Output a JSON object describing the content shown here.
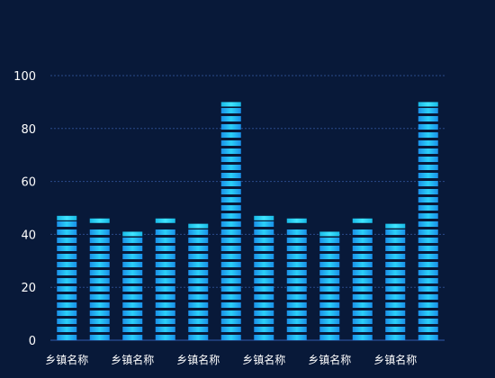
{
  "chart_data": {
    "type": "bar",
    "categories": [
      "乡镇名称",
      "乡镇名称",
      "乡镇名称",
      "乡镇名称",
      "乡镇名称",
      "乡镇名称",
      "乡镇名称",
      "乡镇名称",
      "乡镇名称",
      "乡镇名称",
      "乡镇名称",
      "乡镇名称"
    ],
    "x_tick_labels_shown_every": 2,
    "values": [
      47,
      46,
      41,
      46,
      44,
      90,
      47,
      46,
      41,
      46,
      44,
      90
    ],
    "title": "",
    "xlabel": "",
    "ylabel": "",
    "ylim": [
      0,
      100
    ],
    "yticks": [
      0,
      20,
      40,
      60,
      80,
      100
    ],
    "grid": true,
    "bar_style": "striped",
    "colors": {
      "background": "#081939",
      "grid": "#2a4a8a",
      "bar_light": "#27c6f5",
      "bar_dark": "#1473d6",
      "bar_cap": "#1fe0ff",
      "axis_text": "#ffffff"
    }
  }
}
